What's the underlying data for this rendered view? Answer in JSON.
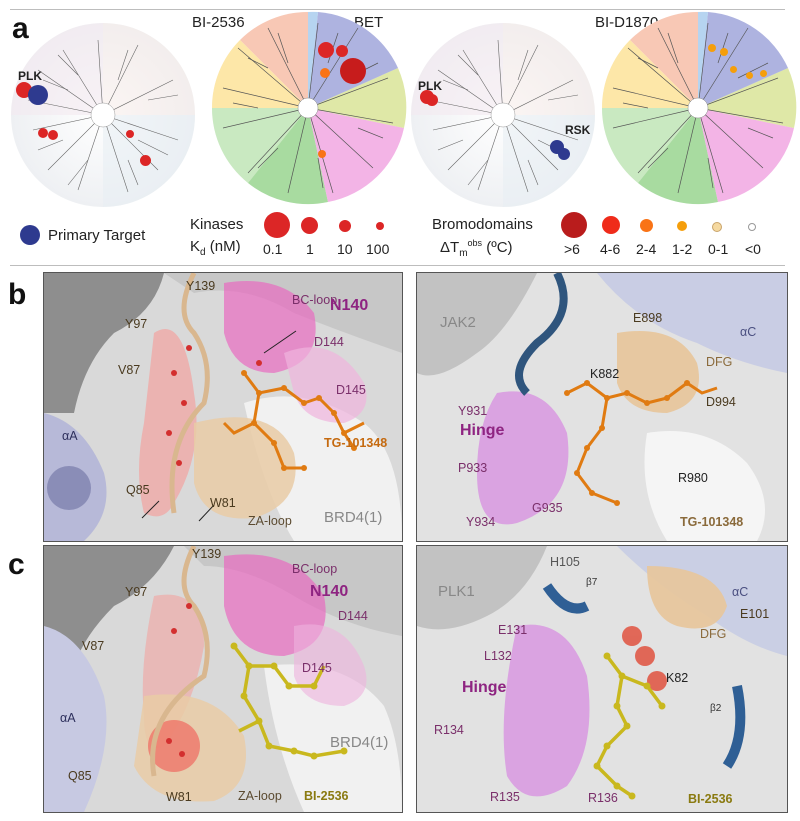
{
  "figure": {
    "panel_a": {
      "letter": "a",
      "tree_titles": [
        "BI-2536",
        "BET",
        "BI-D1870"
      ],
      "tree_labels": {
        "plk_left": "PLK",
        "plk_right": "PLK",
        "rsk": "RSK"
      },
      "legend": {
        "primary_target": "Primary Target",
        "kinases": "Kinases",
        "kd_label": "K",
        "kd_sub": "d",
        "kd_unit": " (nM)",
        "kd_values": [
          "0.1",
          "1",
          "10",
          "100"
        ],
        "bromodomains": "Bromodomains",
        "dt_label": "ΔT",
        "dt_sub": "m",
        "dt_sup": "obs",
        "dt_unit": " (ºC)",
        "dt_values": [
          ">6",
          "4-6",
          "2-4",
          "1-2",
          "0-1",
          "<0"
        ]
      },
      "colors": {
        "primary": "#2e3a8f",
        "kinase": "#dc2626",
        "bromo_dark": "#b91c1c",
        "bromo_orange": "#f97316",
        "bromo_yellow": "#f59e0b"
      }
    },
    "panel_b": {
      "letter": "b",
      "left": {
        "residues": [
          "Y139",
          "BC-loop",
          "N140",
          "Y97",
          "D144",
          "V87",
          "D145",
          "αA",
          "Q85",
          "W81",
          "ZA-loop",
          "BRD4(1)"
        ],
        "ligand": "TG-101348"
      },
      "right": {
        "protein": "JAK2",
        "residues": [
          "E898",
          "αC",
          "DFG",
          "K882",
          "D994",
          "Y931",
          "Hinge",
          "P933",
          "R980",
          "Y934",
          "G935"
        ],
        "ligand": "TG-101348"
      }
    },
    "panel_c": {
      "letter": "c",
      "left": {
        "residues": [
          "Y139",
          "BC-loop",
          "Y97",
          "N140",
          "D144",
          "V87",
          "D145",
          "αA",
          "BRD4(1)",
          "Q85",
          "W81",
          "ZA-loop"
        ],
        "ligand": "BI-2536"
      },
      "right": {
        "protein": "PLK1",
        "residues": [
          "H105",
          "β7",
          "αC",
          "E131",
          "E101",
          "DFG",
          "L132",
          "Hinge",
          "K82",
          "R134",
          "β2",
          "R135",
          "R136"
        ],
        "ligand": "BI-2536"
      }
    }
  }
}
